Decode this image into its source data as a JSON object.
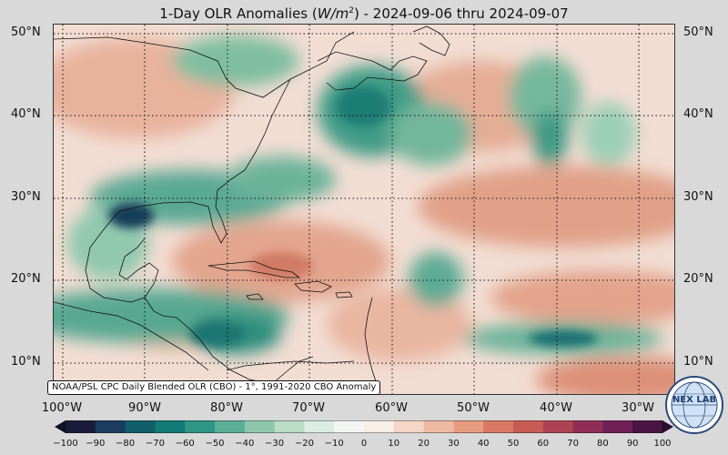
{
  "title": {
    "prefix": "1-Day OLR Anomalies (",
    "unit_main": "W/m",
    "unit_exp": "2",
    "suffix": ") - 2024-09-06 thru 2024-09-07"
  },
  "map": {
    "lat_labels": [
      "50°N",
      "40°N",
      "30°N",
      "20°N",
      "10°N"
    ],
    "lon_labels": [
      "100°W",
      "90°W",
      "80°W",
      "70°W",
      "60°W",
      "50°W",
      "40°W",
      "30°W"
    ],
    "lat_values": [
      50,
      40,
      30,
      20,
      10
    ],
    "lon_values": [
      -100,
      -90,
      -80,
      -70,
      -60,
      -50,
      -40,
      -30
    ],
    "extent": {
      "lon_min": -101,
      "lon_max": -25,
      "lat_min": 7,
      "lat_max": 52
    }
  },
  "credit": "NOAA/PSL CPC Daily Blended OLR (CBO) - 1°, 1991-2020 CBO Anomaly",
  "logo": {
    "text": "NEX LAB",
    "icon": "nexlab-globe-logo-icon"
  },
  "colorbar": {
    "ticks": [
      "−100",
      "−90",
      "−80",
      "−70",
      "−60",
      "−50",
      "−40",
      "−30",
      "−20",
      "−10",
      "0",
      "10",
      "20",
      "30",
      "40",
      "50",
      "60",
      "70",
      "80",
      "90",
      "100"
    ],
    "min": -100,
    "max": 100,
    "colors": [
      "#1a1a3a",
      "#1d3b5c",
      "#0f5e6a",
      "#127a74",
      "#2f9584",
      "#5aae95",
      "#8cc6aa",
      "#b9dcc6",
      "#dceee4",
      "#f3f6f2",
      "#f9efe9",
      "#f5d5c6",
      "#eeb9a2",
      "#e79c80",
      "#d97964",
      "#c65b54",
      "#ad4453",
      "#8f2f56",
      "#6e1f56",
      "#4a1545"
    ]
  }
}
